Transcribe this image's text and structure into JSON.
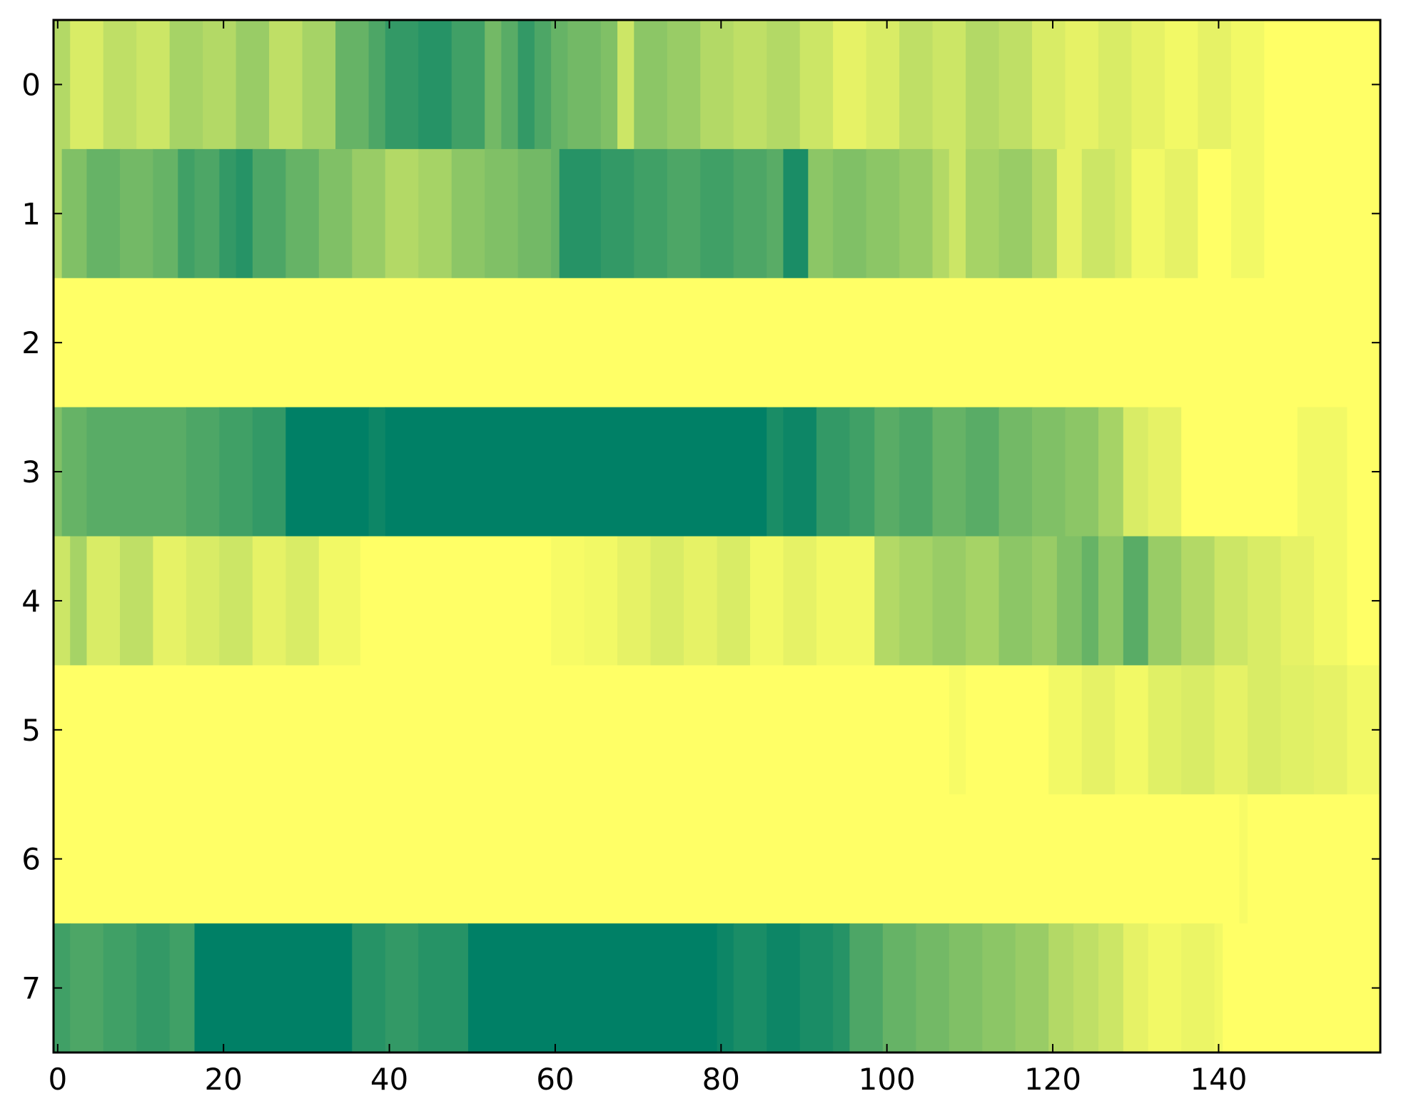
{
  "chart_data": {
    "type": "heatmap",
    "title": "",
    "xlabel": "",
    "ylabel": "",
    "colormap": "summer_r",
    "colormap_colors": {
      "low": "#ffff66",
      "high": "#008066"
    },
    "value_range": [
      0,
      1
    ],
    "columns": 160,
    "rows": [
      0,
      1,
      2,
      3,
      4,
      5,
      6,
      7
    ],
    "x_ticks": [
      0,
      20,
      40,
      60,
      80,
      100,
      120,
      140
    ],
    "y_ticks": [
      0,
      1,
      2,
      3,
      4,
      5,
      6,
      7
    ],
    "xlim": [
      -0.5,
      159.5
    ],
    "ylim": [
      7.5,
      -0.5
    ],
    "grid": false,
    "row_profiles": [
      {
        "row": 0,
        "segments": [
          [
            0,
            0.3
          ],
          [
            2,
            0.15
          ],
          [
            6,
            0.25
          ],
          [
            10,
            0.2
          ],
          [
            14,
            0.35
          ],
          [
            18,
            0.3
          ],
          [
            22,
            0.4
          ],
          [
            26,
            0.25
          ],
          [
            30,
            0.35
          ],
          [
            34,
            0.6
          ],
          [
            38,
            0.7
          ],
          [
            40,
            0.8
          ],
          [
            44,
            0.85
          ],
          [
            48,
            0.75
          ],
          [
            52,
            0.55
          ],
          [
            54,
            0.65
          ],
          [
            56,
            0.8
          ],
          [
            58,
            0.7
          ],
          [
            60,
            0.6
          ],
          [
            62,
            0.55
          ],
          [
            66,
            0.5
          ],
          [
            68,
            0.2
          ],
          [
            70,
            0.45
          ],
          [
            74,
            0.4
          ],
          [
            78,
            0.3
          ],
          [
            82,
            0.25
          ],
          [
            86,
            0.3
          ],
          [
            90,
            0.2
          ],
          [
            94,
            0.1
          ],
          [
            98,
            0.15
          ],
          [
            102,
            0.25
          ],
          [
            106,
            0.2
          ],
          [
            110,
            0.3
          ],
          [
            114,
            0.25
          ],
          [
            118,
            0.15
          ],
          [
            122,
            0.1
          ],
          [
            126,
            0.15
          ],
          [
            130,
            0.1
          ],
          [
            134,
            0.05
          ],
          [
            138,
            0.1
          ],
          [
            142,
            0.05
          ],
          [
            146,
            0.0
          ],
          [
            150,
            0.0
          ]
        ]
      },
      {
        "row": 1,
        "segments": [
          [
            0,
            0.3
          ],
          [
            1,
            0.5
          ],
          [
            4,
            0.6
          ],
          [
            8,
            0.55
          ],
          [
            12,
            0.6
          ],
          [
            15,
            0.75
          ],
          [
            17,
            0.7
          ],
          [
            20,
            0.8
          ],
          [
            22,
            0.85
          ],
          [
            24,
            0.7
          ],
          [
            28,
            0.6
          ],
          [
            32,
            0.5
          ],
          [
            36,
            0.4
          ],
          [
            40,
            0.3
          ],
          [
            44,
            0.35
          ],
          [
            48,
            0.45
          ],
          [
            52,
            0.5
          ],
          [
            56,
            0.55
          ],
          [
            60,
            0.6
          ],
          [
            61,
            0.85
          ],
          [
            66,
            0.8
          ],
          [
            70,
            0.75
          ],
          [
            74,
            0.7
          ],
          [
            78,
            0.75
          ],
          [
            82,
            0.7
          ],
          [
            86,
            0.65
          ],
          [
            88,
            0.9
          ],
          [
            91,
            0.45
          ],
          [
            94,
            0.5
          ],
          [
            98,
            0.45
          ],
          [
            102,
            0.4
          ],
          [
            106,
            0.3
          ],
          [
            108,
            0.2
          ],
          [
            110,
            0.35
          ],
          [
            114,
            0.4
          ],
          [
            118,
            0.3
          ],
          [
            121,
            0.1
          ],
          [
            124,
            0.2
          ],
          [
            128,
            0.15
          ],
          [
            130,
            0.05
          ],
          [
            134,
            0.1
          ],
          [
            138,
            0.0
          ],
          [
            142,
            0.05
          ],
          [
            146,
            0.0
          ],
          [
            150,
            0.0
          ]
        ]
      },
      {
        "row": 2,
        "segments": [
          [
            0,
            0.0
          ]
        ]
      },
      {
        "row": 3,
        "segments": [
          [
            0,
            0.5
          ],
          [
            1,
            0.6
          ],
          [
            4,
            0.65
          ],
          [
            16,
            0.7
          ],
          [
            20,
            0.75
          ],
          [
            24,
            0.8
          ],
          [
            28,
            1.0
          ],
          [
            38,
            0.95
          ],
          [
            40,
            1.0
          ],
          [
            86,
            0.9
          ],
          [
            88,
            0.95
          ],
          [
            92,
            0.8
          ],
          [
            96,
            0.75
          ],
          [
            99,
            0.65
          ],
          [
            102,
            0.7
          ],
          [
            106,
            0.6
          ],
          [
            110,
            0.65
          ],
          [
            114,
            0.55
          ],
          [
            118,
            0.5
          ],
          [
            122,
            0.45
          ],
          [
            126,
            0.35
          ],
          [
            129,
            0.15
          ],
          [
            132,
            0.1
          ],
          [
            136,
            0.0
          ],
          [
            150,
            0.05
          ],
          [
            156,
            0.0
          ]
        ]
      },
      {
        "row": 4,
        "segments": [
          [
            0,
            0.2
          ],
          [
            2,
            0.35
          ],
          [
            4,
            0.15
          ],
          [
            8,
            0.25
          ],
          [
            12,
            0.1
          ],
          [
            16,
            0.15
          ],
          [
            20,
            0.2
          ],
          [
            24,
            0.1
          ],
          [
            28,
            0.15
          ],
          [
            32,
            0.05
          ],
          [
            37,
            0.0
          ],
          [
            60,
            0.03
          ],
          [
            64,
            0.05
          ],
          [
            68,
            0.1
          ],
          [
            72,
            0.15
          ],
          [
            76,
            0.1
          ],
          [
            80,
            0.15
          ],
          [
            84,
            0.05
          ],
          [
            88,
            0.1
          ],
          [
            92,
            0.05
          ],
          [
            99,
            0.3
          ],
          [
            102,
            0.35
          ],
          [
            106,
            0.4
          ],
          [
            110,
            0.35
          ],
          [
            114,
            0.45
          ],
          [
            118,
            0.4
          ],
          [
            121,
            0.5
          ],
          [
            124,
            0.6
          ],
          [
            126,
            0.45
          ],
          [
            129,
            0.65
          ],
          [
            132,
            0.4
          ],
          [
            136,
            0.3
          ],
          [
            140,
            0.2
          ],
          [
            144,
            0.15
          ],
          [
            148,
            0.1
          ],
          [
            152,
            0.05
          ],
          [
            156,
            0.0
          ]
        ]
      },
      {
        "row": 5,
        "segments": [
          [
            0,
            0.0
          ],
          [
            108,
            0.03
          ],
          [
            110,
            0.0
          ],
          [
            120,
            0.05
          ],
          [
            124,
            0.1
          ],
          [
            128,
            0.05
          ],
          [
            132,
            0.12
          ],
          [
            136,
            0.15
          ],
          [
            140,
            0.1
          ],
          [
            144,
            0.15
          ],
          [
            148,
            0.12
          ],
          [
            152,
            0.1
          ],
          [
            156,
            0.05
          ]
        ]
      },
      {
        "row": 6,
        "segments": [
          [
            0,
            0.0
          ],
          [
            143,
            0.03
          ],
          [
            144,
            0.0
          ]
        ]
      },
      {
        "row": 7,
        "segments": [
          [
            0,
            0.75
          ],
          [
            2,
            0.7
          ],
          [
            6,
            0.75
          ],
          [
            10,
            0.8
          ],
          [
            14,
            0.75
          ],
          [
            17,
            1.0
          ],
          [
            36,
            0.85
          ],
          [
            40,
            0.8
          ],
          [
            44,
            0.85
          ],
          [
            50,
            1.0
          ],
          [
            80,
            0.95
          ],
          [
            82,
            0.9
          ],
          [
            86,
            0.95
          ],
          [
            90,
            0.9
          ],
          [
            94,
            0.85
          ],
          [
            96,
            0.7
          ],
          [
            100,
            0.6
          ],
          [
            104,
            0.55
          ],
          [
            108,
            0.5
          ],
          [
            112,
            0.45
          ],
          [
            116,
            0.4
          ],
          [
            120,
            0.3
          ],
          [
            123,
            0.25
          ],
          [
            126,
            0.2
          ],
          [
            129,
            0.1
          ],
          [
            132,
            0.05
          ],
          [
            136,
            0.08
          ],
          [
            140,
            0.05
          ],
          [
            141,
            0.0
          ]
        ]
      }
    ]
  }
}
